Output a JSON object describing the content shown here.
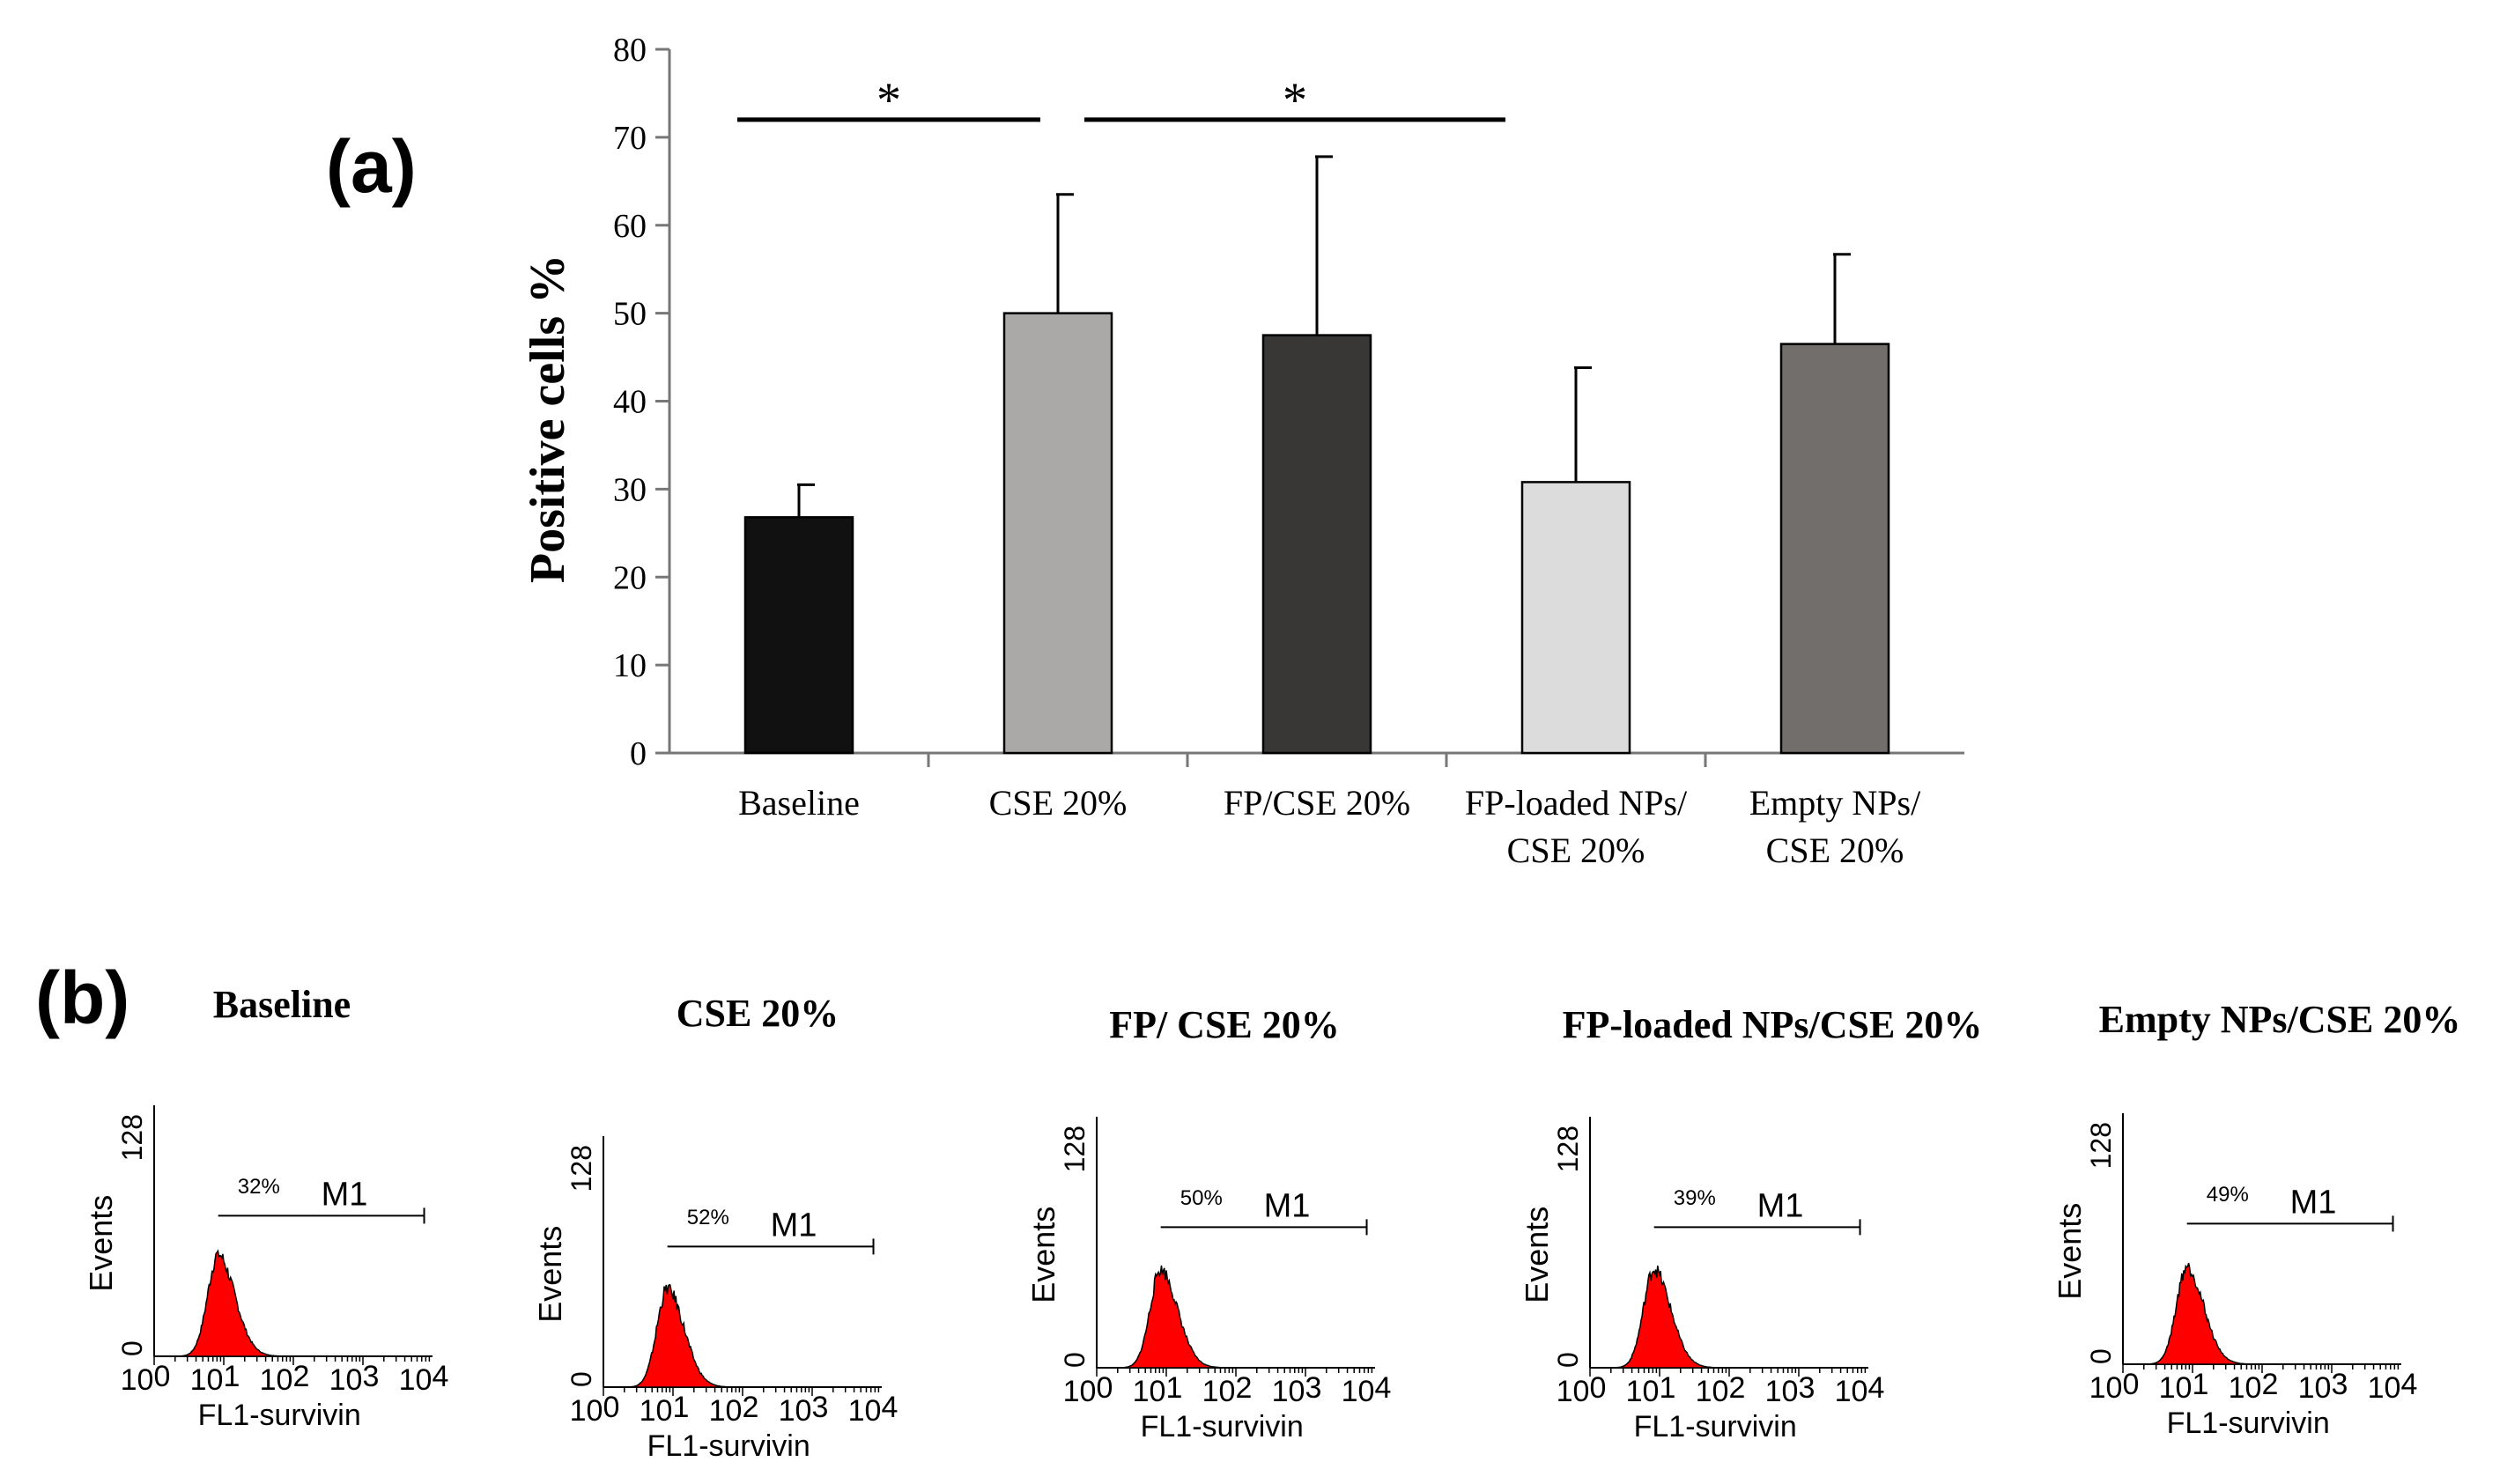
{
  "panel_a_label": "(a)",
  "panel_b_label": "(b)",
  "chart_data": [
    {
      "type": "bar",
      "ylabel": "Positive cells %",
      "ylim": [
        0,
        80
      ],
      "yticks": [
        0,
        10,
        20,
        30,
        40,
        50,
        60,
        70,
        80
      ],
      "categories": [
        [
          "Baseline"
        ],
        [
          "CSE 20%"
        ],
        [
          "FP/CSE 20%"
        ],
        [
          "FP-loaded NPs/",
          "CSE 20%"
        ],
        [
          "Empty NPs/",
          "CSE 20%"
        ]
      ],
      "values": [
        26.8,
        50.0,
        47.5,
        30.8,
        46.5
      ],
      "errors": [
        3.7,
        13.5,
        20.3,
        13.0,
        10.2
      ],
      "colors": [
        "#111111",
        "#aba9a8",
        "#383735",
        "#dcdcdc",
        "#726e6c"
      ],
      "significance": [
        {
          "from": 0,
          "to": 1,
          "label": "*",
          "y": 72
        },
        {
          "from": 1,
          "to": 3,
          "label": "*",
          "y": 72
        }
      ]
    },
    {
      "type": "histogram-panels",
      "xlabel": "FL1-survivin",
      "ylabel": "Events",
      "ytick_top": "128",
      "ytick_bottom": "0",
      "xticks": [
        "10",
        "10",
        "10",
        "10",
        "10"
      ],
      "xtick_exp": [
        "0",
        "1",
        "2",
        "3",
        "4"
      ],
      "marker_label": "M1",
      "fill_color": "#ff0000",
      "panels": [
        {
          "title": "Baseline",
          "percent": "32%"
        },
        {
          "title": "CSE 20%",
          "percent": "52%"
        },
        {
          "title": "FP/ CSE 20%",
          "percent": "50%"
        },
        {
          "title": "FP-loaded NPs/CSE 20%",
          "percent": "39%"
        },
        {
          "title": "Empty NPs/CSE 20%",
          "percent": "49%"
        }
      ]
    }
  ]
}
